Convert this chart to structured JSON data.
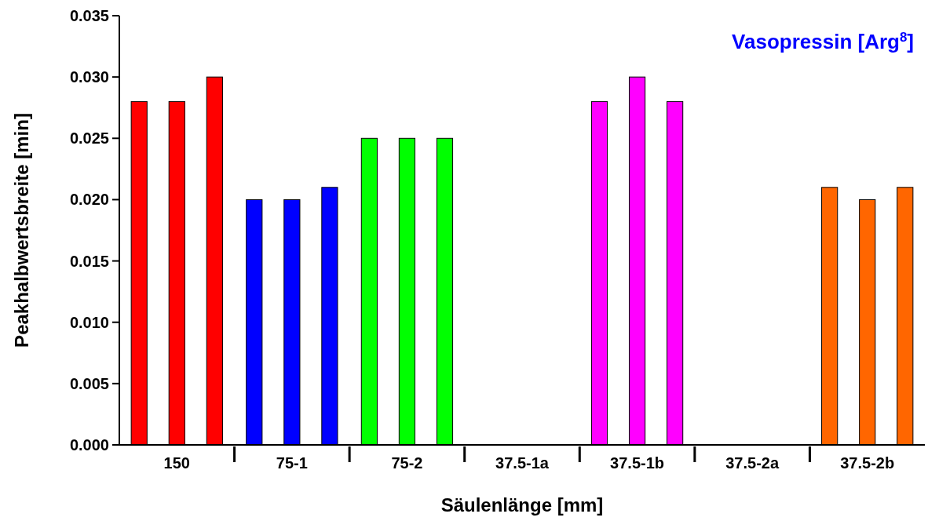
{
  "chart_data": {
    "type": "bar",
    "title": "Vasopressin [Arg$^{8}$]",
    "xlabel": "Säulenlänge [mm]",
    "ylabel": "Peakhalbwertsbreite [min]",
    "categories": [
      "150",
      "75-1",
      "75-2",
      "37.5-1a",
      "37.5-1b",
      "37.5-2a",
      "37.5-2b"
    ],
    "series": [
      {
        "colors": [
          "#ff0000",
          "#0000ff",
          "#00ff00",
          null,
          "#ff00ff",
          null,
          "#ff6600"
        ],
        "values": [
          0.028,
          0.02,
          0.025,
          null,
          0.028,
          null,
          0.021
        ]
      },
      {
        "colors": [
          "#ff0000",
          "#0000ff",
          "#00ff00",
          null,
          "#ff00ff",
          null,
          "#ff6600"
        ],
        "values": [
          0.028,
          0.02,
          0.025,
          null,
          0.03,
          null,
          0.02
        ]
      },
      {
        "colors": [
          "#ff0000",
          "#0000ff",
          "#00ff00",
          null,
          "#ff00ff",
          null,
          "#ff6600"
        ],
        "values": [
          0.03,
          0.021,
          0.025,
          null,
          0.028,
          null,
          0.021
        ]
      }
    ],
    "ylim": [
      0,
      0.035
    ],
    "yticks": [
      {
        "value": 0,
        "label": "0.000"
      },
      {
        "value": 0.005,
        "label": "0.005"
      },
      {
        "value": 0.01,
        "label": "0.010"
      },
      {
        "value": 0.015,
        "label": "0.015"
      },
      {
        "value": 0.02,
        "label": "0.020"
      },
      {
        "value": 0.025,
        "label": "0.025"
      },
      {
        "value": 0.03,
        "label": "0.030"
      },
      {
        "value": 0.035,
        "label": "0.035"
      }
    ],
    "grid": false
  }
}
